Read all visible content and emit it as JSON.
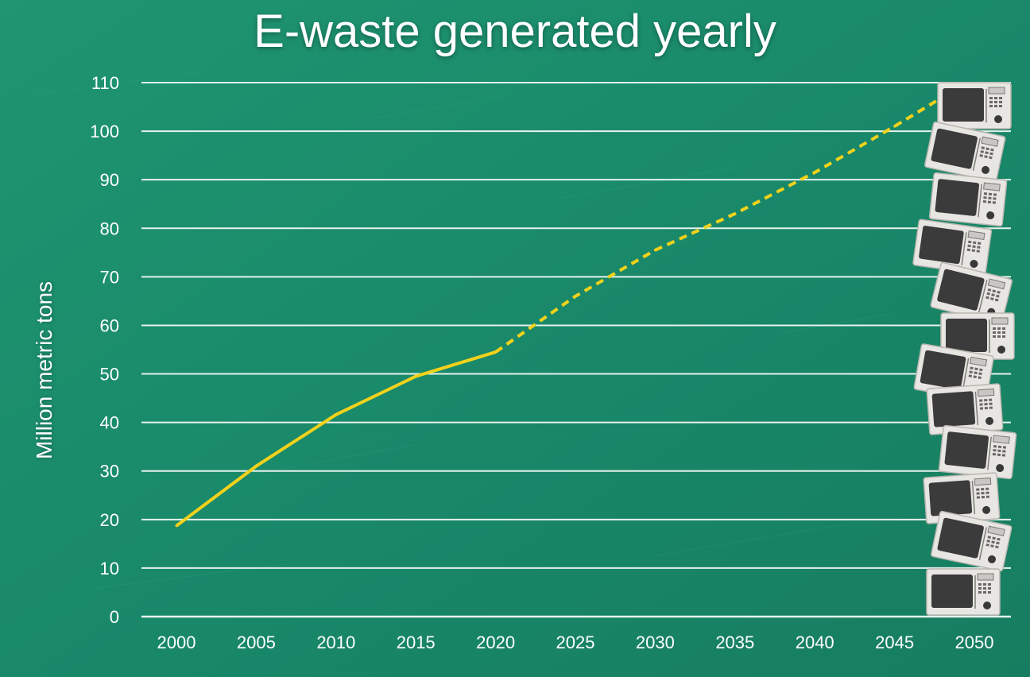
{
  "chart_data": {
    "type": "line",
    "title": "E-waste generated yearly",
    "xlabel": "",
    "ylabel": "Million metric tons",
    "x_ticks": [
      "2000",
      "2005",
      "2010",
      "2015",
      "2020",
      "2025",
      "2030",
      "2035",
      "2040",
      "2045",
      "2050"
    ],
    "y_ticks": [
      "0",
      "10",
      "20",
      "30",
      "40",
      "50",
      "60",
      "70",
      "80",
      "90",
      "100",
      "110"
    ],
    "xlim": [
      2000,
      2050
    ],
    "ylim": [
      0,
      110
    ],
    "grid": true,
    "series": [
      {
        "style": "solid",
        "color": "#f2d21b",
        "x": [
          2000,
          2005,
          2010,
          2015,
          2020
        ],
        "y": [
          18.7,
          31,
          41.6,
          49.5,
          54.5
        ]
      },
      {
        "style": "dashed",
        "color": "#f2d21b",
        "x": [
          2020,
          2025,
          2030,
          2035,
          2040,
          2045,
          2048
        ],
        "y": [
          54.5,
          66,
          75.5,
          83,
          91.5,
          101,
          107
        ]
      }
    ],
    "decoration": "stack-of-microwaves-icon"
  },
  "colors": {
    "background": "#1b8a66",
    "grid": "#e6f2ec",
    "text": "#ffffff",
    "line": "#f2d21b"
  }
}
